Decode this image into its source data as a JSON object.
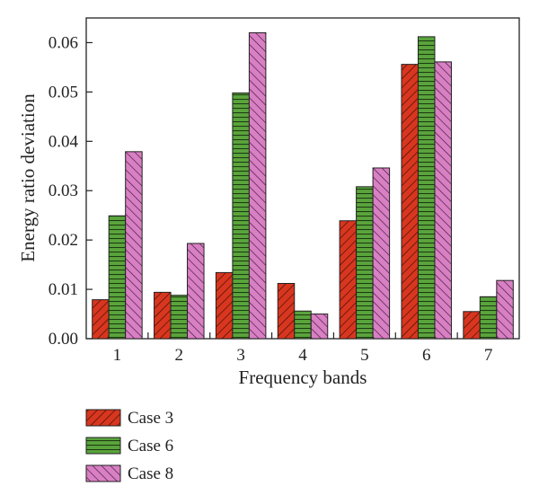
{
  "chart_data": {
    "type": "bar",
    "xlabel": "Frequency bands",
    "ylabel": "Energy ratio deviation",
    "categories": [
      "1",
      "2",
      "3",
      "4",
      "5",
      "6",
      "7"
    ],
    "ylim": [
      0,
      0.065
    ],
    "yticks": [
      "0.00",
      "0.01",
      "0.02",
      "0.03",
      "0.04",
      "0.05",
      "0.06"
    ],
    "grid": false,
    "legend_position": "bottom-left, below plot",
    "series": [
      {
        "name": "Case 3",
        "color": "#d8361f",
        "pattern": "diagonal-hatch",
        "values": [
          0.0079,
          0.0094,
          0.0134,
          0.0112,
          0.0239,
          0.0556,
          0.0055
        ]
      },
      {
        "name": "Case 6",
        "color": "#5aa43c",
        "pattern": "horizontal-lines",
        "values": [
          0.0249,
          0.0088,
          0.0498,
          0.0056,
          0.0308,
          0.0612,
          0.0085
        ]
      },
      {
        "name": "Case 8",
        "color": "#d97fc4",
        "pattern": "diagonal-hatch",
        "values": [
          0.0379,
          0.0193,
          0.062,
          0.005,
          0.0346,
          0.0561,
          0.0118
        ]
      }
    ]
  }
}
